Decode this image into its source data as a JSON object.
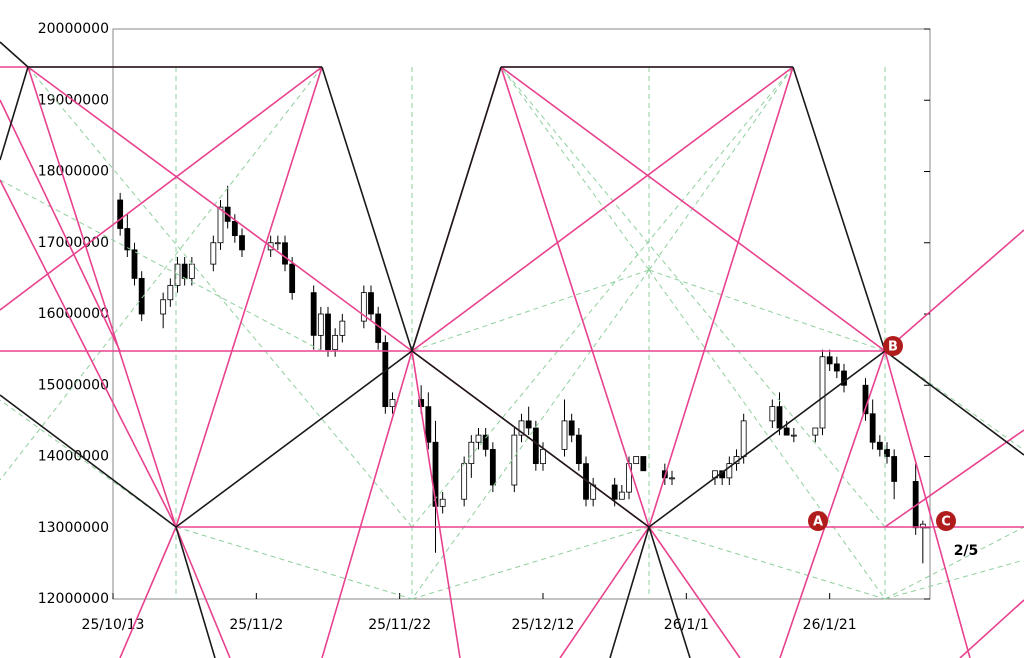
{
  "chart_data": {
    "type": "candlestick",
    "x": [
      "25/10/14",
      "25/10/15",
      "25/10/16",
      "25/10/17",
      "25/10/20",
      "25/10/21",
      "25/10/22",
      "25/10/23",
      "25/10/24",
      "25/10/27",
      "25/10/28",
      "25/10/29",
      "25/10/30",
      "25/10/31",
      "25/11/4",
      "25/11/5",
      "25/11/6",
      "25/11/7",
      "25/11/10",
      "25/11/11",
      "25/11/12",
      "25/11/13",
      "25/11/14",
      "25/11/17",
      "25/11/18",
      "25/11/19",
      "25/11/20",
      "25/11/21",
      "25/11/25",
      "25/11/26",
      "25/11/27",
      "25/11/28",
      "25/12/1",
      "25/12/2",
      "25/12/3",
      "25/12/4",
      "25/12/5",
      "25/12/8",
      "25/12/9",
      "25/12/10",
      "25/12/11",
      "25/12/12",
      "25/12/15",
      "25/12/16",
      "25/12/17",
      "25/12/18",
      "25/12/19",
      "25/12/22",
      "25/12/23",
      "25/12/24",
      "25/12/25",
      "25/12/26",
      "25/12/29",
      "25/12/30",
      "26/1/5",
      "26/1/6",
      "26/1/7",
      "26/1/8",
      "26/1/9",
      "26/1/13",
      "26/1/14",
      "26/1/15",
      "26/1/16",
      "26/1/19",
      "26/1/20",
      "26/1/21",
      "26/1/22",
      "26/1/23",
      "26/1/26",
      "26/1/27",
      "26/1/28",
      "26/1/29",
      "26/1/30",
      "26/2/2",
      "26/2/3"
    ],
    "open": [
      17600000,
      17200000,
      16900000,
      16500000,
      16000000,
      16200000,
      16400000,
      16700000,
      16500000,
      16700000,
      17000000,
      17500000,
      17300000,
      17100000,
      16900000,
      17000000,
      17000000,
      16700000,
      16300000,
      15700000,
      16000000,
      15500000,
      15700000,
      15900000,
      16300000,
      16000000,
      15600000,
      14700000,
      14800000,
      14700000,
      14200000,
      13300000,
      13400000,
      13900000,
      14200000,
      14300000,
      14100000,
      13600000,
      14300000,
      14500000,
      14400000,
      13900000,
      14100000,
      14500000,
      14300000,
      13900000,
      13400000,
      13600000,
      13400000,
      13500000,
      13900000,
      14000000,
      13800000,
      13700000,
      13700000,
      13800000,
      13700000,
      13900000,
      14000000,
      14500000,
      14700000,
      14400000,
      14300000,
      14300000,
      14400000,
      15400000,
      15300000,
      15200000,
      15000000,
      14600000,
      14200000,
      14100000,
      14000000,
      13650000,
      13000000
    ],
    "high": [
      17700000,
      17400000,
      17000000,
      16600000,
      16300000,
      16500000,
      16800000,
      16800000,
      16800000,
      17100000,
      17600000,
      17800000,
      17400000,
      17200000,
      17100000,
      17100000,
      17100000,
      16800000,
      16400000,
      16100000,
      16100000,
      15800000,
      16000000,
      16400000,
      16400000,
      16100000,
      15700000,
      14900000,
      15000000,
      14900000,
      14500000,
      13500000,
      14000000,
      14300000,
      14400000,
      14400000,
      14200000,
      14400000,
      14600000,
      14700000,
      14500000,
      14200000,
      14800000,
      14600000,
      14400000,
      14000000,
      13700000,
      13700000,
      13600000,
      14000000,
      14000000,
      14000000,
      13900000,
      13800000,
      13800000,
      13800000,
      14000000,
      14100000,
      14600000,
      14800000,
      14900000,
      14500000,
      14400000,
      14400000,
      15500000,
      15500000,
      15400000,
      15300000,
      15100000,
      14800000,
      14300000,
      14200000,
      14100000,
      13900000,
      13100000
    ],
    "low": [
      17100000,
      16800000,
      16400000,
      15900000,
      15800000,
      16100000,
      16300000,
      16400000,
      16400000,
      16600000,
      16900000,
      17200000,
      17000000,
      16800000,
      16800000,
      16900000,
      16600000,
      16200000,
      15500000,
      15500000,
      15400000,
      15400000,
      15600000,
      15800000,
      15900000,
      15500000,
      14600000,
      14600000,
      14600000,
      14100000,
      12650000,
      13200000,
      13300000,
      13700000,
      14100000,
      14000000,
      13500000,
      13500000,
      14200000,
      14300000,
      13800000,
      13800000,
      14000000,
      14200000,
      13800000,
      13300000,
      13300000,
      13300000,
      13400000,
      13400000,
      13900000,
      13800000,
      13600000,
      13600000,
      13600000,
      13600000,
      13600000,
      13800000,
      13900000,
      14400000,
      14300000,
      14300000,
      14200000,
      14200000,
      14300000,
      15200000,
      15100000,
      14900000,
      14500000,
      14100000,
      14000000,
      13900000,
      13400000,
      12900000,
      12500000
    ],
    "close": [
      17200000,
      16900000,
      16500000,
      16000000,
      16200000,
      16400000,
      16700000,
      16500000,
      16700000,
      17000000,
      17500000,
      17300000,
      17100000,
      16900000,
      17000000,
      17000000,
      16700000,
      16300000,
      15700000,
      16000000,
      15500000,
      15700000,
      15900000,
      16300000,
      16000000,
      15600000,
      14700000,
      14800000,
      14700000,
      14200000,
      13300000,
      13400000,
      13900000,
      14200000,
      14300000,
      14100000,
      13600000,
      14300000,
      14500000,
      14400000,
      13900000,
      14100000,
      14500000,
      14300000,
      13900000,
      13400000,
      13600000,
      13400000,
      13500000,
      13900000,
      14000000,
      13800000,
      13700000,
      13700000,
      13800000,
      13700000,
      13900000,
      14000000,
      14500000,
      14700000,
      14400000,
      14300000,
      14300000,
      14400000,
      15400000,
      15300000,
      15200000,
      15000000,
      14600000,
      14200000,
      14100000,
      14000000,
      13650000,
      13000000,
      13050000
    ],
    "up_color": "#ffffff",
    "down_color": "#000000",
    "xlim": [
      "25/10/13",
      "26/2/4"
    ],
    "xticks": [
      "25/10/13",
      "25/11/2",
      "25/11/22",
      "25/12/12",
      "26/1/1",
      "26/1/21"
    ],
    "ylim": [
      12000000,
      20000000
    ],
    "yticks": [
      12000000,
      13000000,
      14000000,
      15000000,
      16000000,
      17000000,
      18000000,
      19000000,
      20000000
    ],
    "annotations": [
      "A",
      "B",
      "C",
      "2/5"
    ]
  }
}
